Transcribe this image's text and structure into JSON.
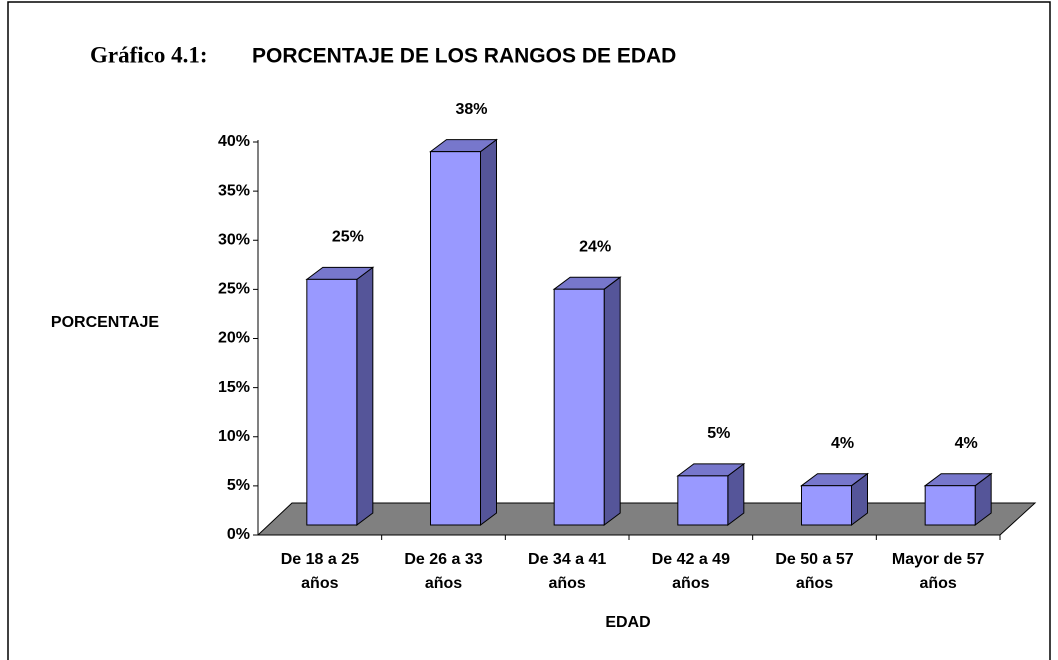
{
  "chart_data": {
    "type": "bar3d",
    "title_label": "Gráfico 4.1:",
    "title": "PORCENTAJE DE LOS RANGOS DE EDAD",
    "y_label": "PORCENTAJE",
    "x_label": "EDAD",
    "categories": [
      "De 18 a 25\naños",
      "De 26 a 33\naños",
      "De 34 a 41\naños",
      "De 42 a 49\naños",
      "De 50 a 57\naños",
      "Mayor de 57\naños"
    ],
    "values": [
      25,
      38,
      24,
      5,
      4,
      4
    ],
    "value_labels": [
      "25%",
      "38%",
      "24%",
      "5%",
      "4%",
      "4%"
    ],
    "color": "#9999ff",
    "ylim": [
      0,
      40
    ],
    "yticks": [
      {
        "value": 0,
        "label": "0%"
      },
      {
        "value": 5,
        "label": "5%"
      },
      {
        "value": 10,
        "label": "10%"
      },
      {
        "value": 15,
        "label": "15%"
      },
      {
        "value": 20,
        "label": "20%"
      },
      {
        "value": 25,
        "label": "25%"
      },
      {
        "value": 30,
        "label": "30%"
      },
      {
        "value": 35,
        "label": "35%"
      },
      {
        "value": 40,
        "label": "40%"
      }
    ]
  }
}
